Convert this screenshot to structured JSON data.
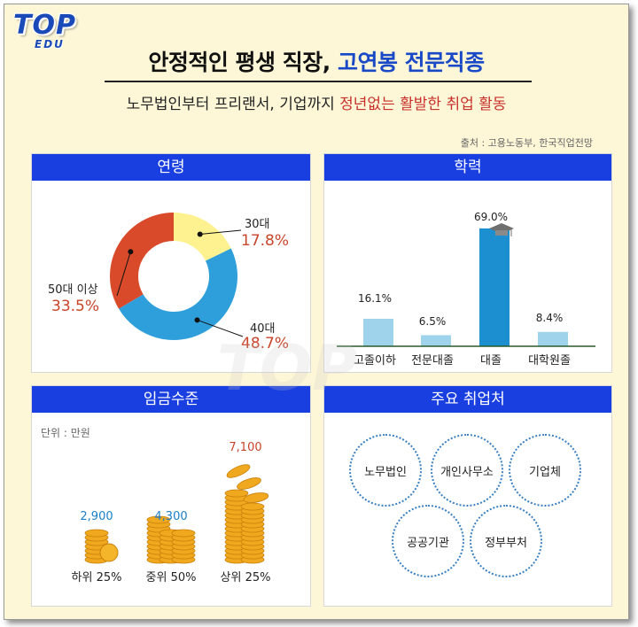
{
  "logo": {
    "top": "TOP",
    "edu": "EDU"
  },
  "title": {
    "part1": "안정적인 평생 직장, ",
    "part2": "고연봉 전문직종"
  },
  "subtitle": {
    "part1": "노무법인부터 프리랜서, 기업까지 ",
    "part2": "정년없는 활발한 취업 활동"
  },
  "source": "출처 : 고용노동부, 한국직업전망",
  "colors": {
    "header_blue": "#1a3fe0",
    "accent_red": "#c8442a",
    "bar_dark": "#1b8fd0",
    "bar_light": "#9fd3ec",
    "donut": [
      "#fdf28f",
      "#2f9fdc",
      "#d94a2a"
    ]
  },
  "panels": {
    "age": "연령",
    "education": "학력",
    "wage": "임금수준",
    "employers": "주요 취업처"
  },
  "chart_data": [
    {
      "type": "pie",
      "title": "연령",
      "categories": [
        "30대",
        "40대",
        "50대 이상"
      ],
      "values": [
        17.8,
        48.7,
        33.5
      ],
      "labels": [
        "17.8%",
        "48.7%",
        "33.5%"
      ]
    },
    {
      "type": "bar",
      "title": "학력",
      "categories": [
        "고졸이하",
        "전문대졸",
        "대졸",
        "대학원졸"
      ],
      "values": [
        16.1,
        6.5,
        69.0,
        8.4
      ],
      "labels": [
        "16.1%",
        "6.5%",
        "69.0%",
        "8.4%"
      ]
    },
    {
      "type": "bar",
      "title": "임금수준",
      "unit": "단위 : 만원",
      "categories": [
        "하위 25%",
        "중위 50%",
        "상위 25%"
      ],
      "values": [
        2900,
        4300,
        7100
      ],
      "labels": [
        "2,900",
        "4,300",
        "7,100"
      ]
    }
  ],
  "employers": [
    "노무법인",
    "개인사무소",
    "기업체",
    "공공기관",
    "정부부처"
  ],
  "watermark": "TOP"
}
